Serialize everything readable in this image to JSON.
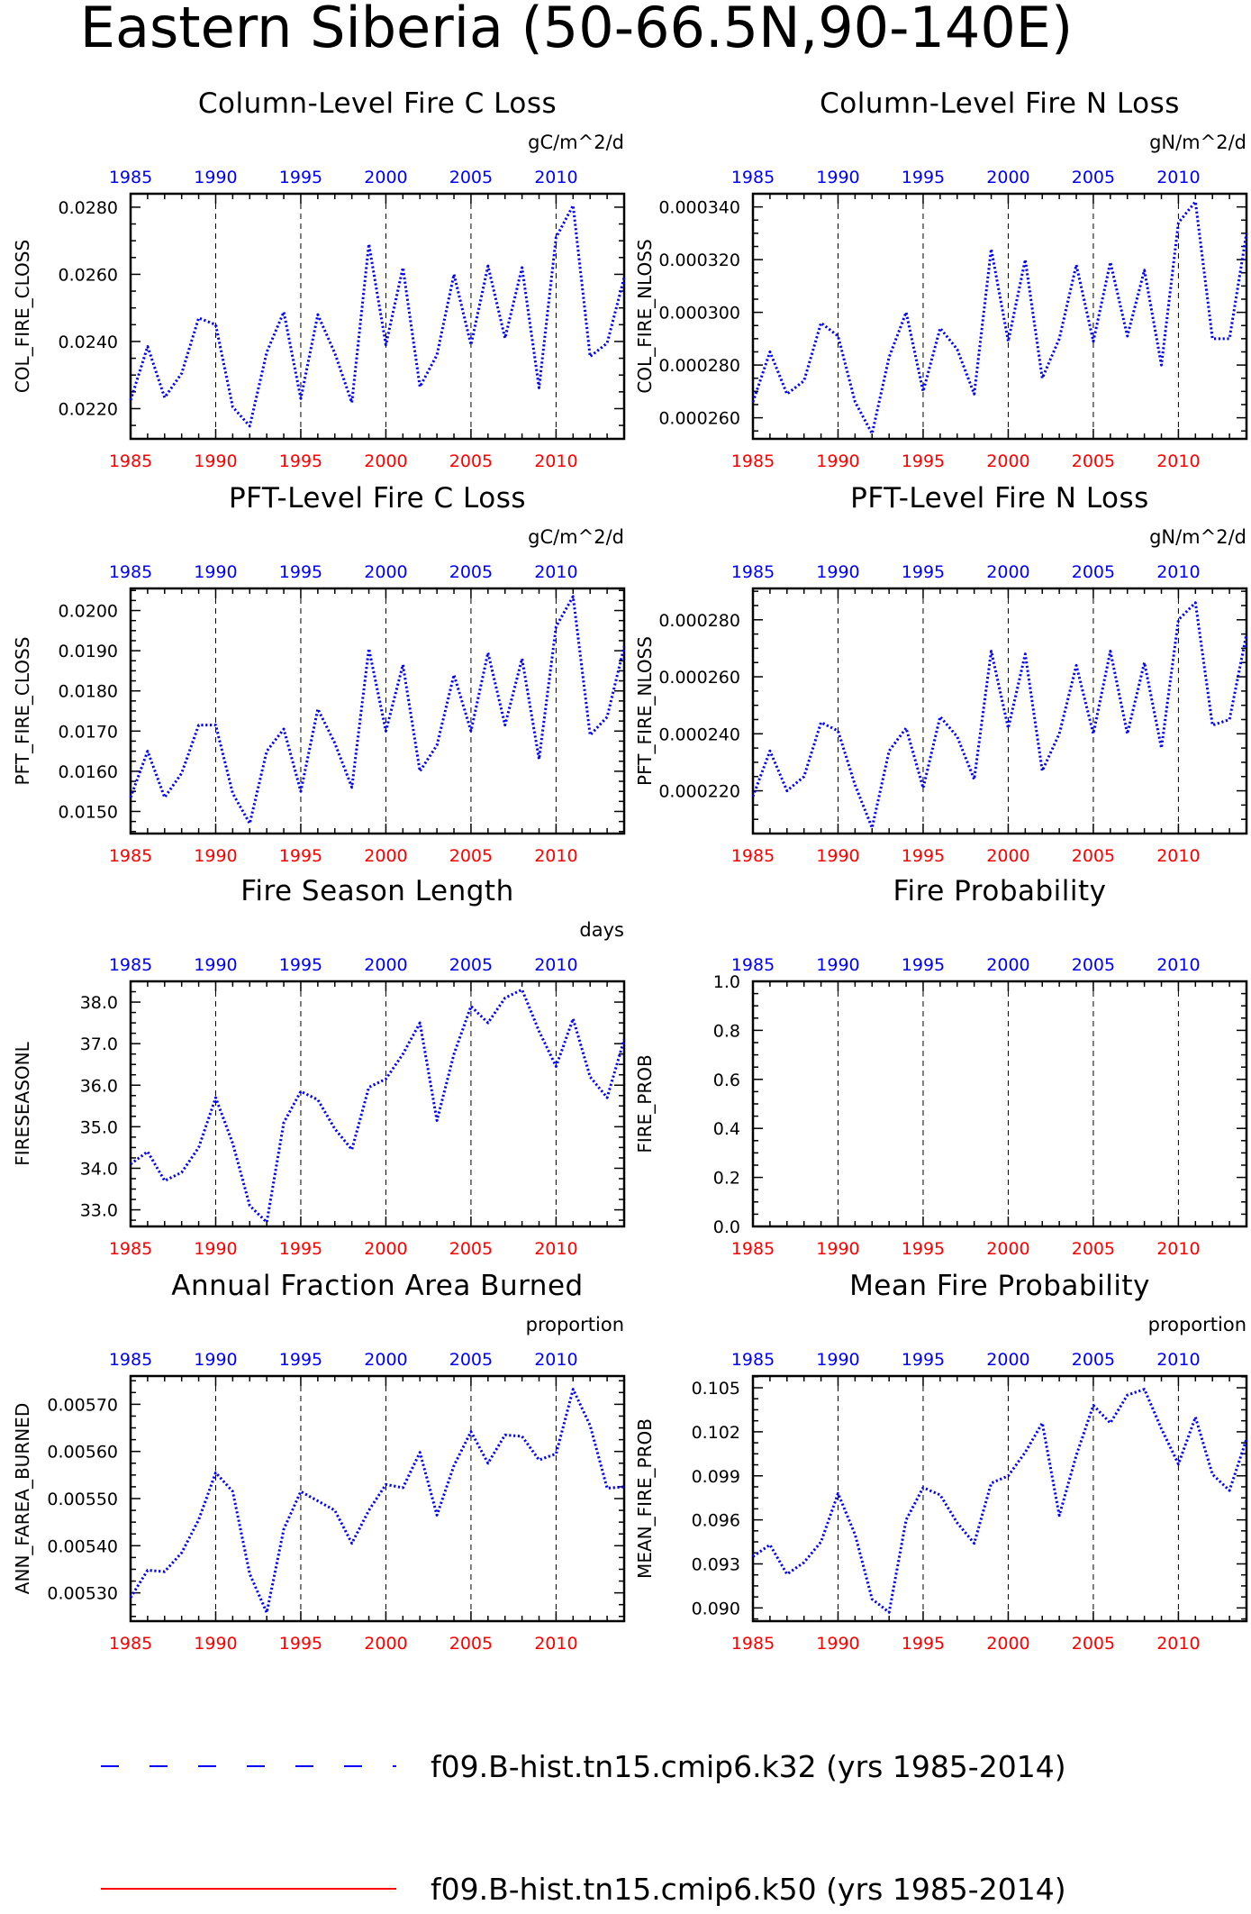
{
  "figure_title": "Eastern Siberia (50-66.5N,90-140E)",
  "colors": {
    "series": "#0000ff",
    "bottom_ticks": "#ff0000",
    "top_ticks": "#0000ff",
    "axes": "#000000"
  },
  "legend": [
    {
      "label": "f09.B-hist.tn15.cmip6.k32 (yrs 1985-2014)",
      "color": "#0000ff",
      "style": "dashed"
    },
    {
      "label": "f09.B-hist.tn15.cmip6.k50 (yrs 1985-2014)",
      "color": "#ff0000",
      "style": "solid"
    }
  ],
  "chart_data": [
    {
      "type": "line",
      "title": "Column-Level Fire C Loss",
      "units": "gC/m^2/d",
      "ylabel": "COL_FIRE_CLOSS",
      "xlim": [
        1985,
        2014
      ],
      "x_ticks": [
        1985,
        1990,
        1995,
        2000,
        2005,
        2010
      ],
      "ylim": [
        0.0211,
        0.0284
      ],
      "y_ticks": [
        "0.0220",
        "0.0240",
        "0.0260",
        "0.0280"
      ],
      "y_tick_values": [
        0.022,
        0.024,
        0.026,
        0.028
      ],
      "grid": "vertical dashed at x ticks",
      "x": [
        1985,
        1986,
        1987,
        1988,
        1989,
        1990,
        1991,
        1992,
        1993,
        1994,
        1995,
        1996,
        1997,
        1998,
        1999,
        2000,
        2001,
        2002,
        2003,
        2004,
        2005,
        2006,
        2007,
        2008,
        2009,
        2010,
        2011,
        2012,
        2013,
        2014
      ],
      "series": [
        {
          "name": "f09.B-hist.tn15.cmip6.k32",
          "values": [
            0.02225,
            0.02385,
            0.02233,
            0.02305,
            0.0247,
            0.0245,
            0.02205,
            0.02148,
            0.02368,
            0.02488,
            0.0223,
            0.0248,
            0.02365,
            0.02218,
            0.0269,
            0.0239,
            0.0262,
            0.02265,
            0.0236,
            0.026,
            0.0239,
            0.02625,
            0.0241,
            0.0262,
            0.02262,
            0.0271,
            0.02805,
            0.02355,
            0.02395,
            0.0259
          ]
        }
      ]
    },
    {
      "type": "line",
      "title": "Column-Level Fire N Loss",
      "units": "gN/m^2/d",
      "ylabel": "COL_FIRE_NLOSS",
      "xlim": [
        1985,
        2014
      ],
      "x_ticks": [
        1985,
        1990,
        1995,
        2000,
        2005,
        2010
      ],
      "ylim": [
        0.000252,
        0.000345
      ],
      "y_ticks": [
        "0.000260",
        "0.000280",
        "0.000300",
        "0.000320",
        "0.000340"
      ],
      "y_tick_values": [
        0.00026,
        0.00028,
        0.0003,
        0.00032,
        0.00034
      ],
      "grid": "vertical dashed at x ticks",
      "x": [
        1985,
        1986,
        1987,
        1988,
        1989,
        1990,
        1991,
        1992,
        1993,
        1994,
        1995,
        1996,
        1997,
        1998,
        1999,
        2000,
        2001,
        2002,
        2003,
        2004,
        2005,
        2006,
        2007,
        2008,
        2009,
        2010,
        2011,
        2012,
        2013,
        2014
      ],
      "series": [
        {
          "name": "f09.B-hist.tn15.cmip6.k32",
          "values": [
            0.000266,
            0.000285,
            0.000269,
            0.000274,
            0.000296,
            0.000291,
            0.000266,
            0.000254,
            0.000283,
            0.0003,
            0.00027,
            0.000294,
            0.000286,
            0.000269,
            0.000324,
            0.000289,
            0.00032,
            0.000275,
            0.00029,
            0.000318,
            0.000289,
            0.000319,
            0.000291,
            0.000316,
            0.00028,
            0.000334,
            0.000342,
            0.00029,
            0.00029,
            0.00033
          ]
        }
      ]
    },
    {
      "type": "line",
      "title": "PFT-Level Fire C Loss",
      "units": "gC/m^2/d",
      "ylabel": "PFT_FIRE_CLOSS",
      "xlim": [
        1985,
        2014
      ],
      "x_ticks": [
        1985,
        1990,
        1995,
        2000,
        2005,
        2010
      ],
      "ylim": [
        0.01445,
        0.02055
      ],
      "y_ticks": [
        "0.0150",
        "0.0160",
        "0.0170",
        "0.0180",
        "0.0190",
        "0.0200"
      ],
      "y_tick_values": [
        0.015,
        0.016,
        0.017,
        0.018,
        0.019,
        0.02
      ],
      "grid": "vertical dashed at x ticks",
      "x": [
        1985,
        1986,
        1987,
        1988,
        1989,
        1990,
        1991,
        1992,
        1993,
        1994,
        1995,
        1996,
        1997,
        1998,
        1999,
        2000,
        2001,
        2002,
        2003,
        2004,
        2005,
        2006,
        2007,
        2008,
        2009,
        2010,
        2011,
        2012,
        2013,
        2014
      ],
      "series": [
        {
          "name": "f09.B-hist.tn15.cmip6.k32",
          "values": [
            0.01535,
            0.0165,
            0.01535,
            0.01595,
            0.01715,
            0.01715,
            0.01545,
            0.0147,
            0.0165,
            0.01705,
            0.0155,
            0.01755,
            0.0167,
            0.0156,
            0.01905,
            0.017,
            0.01865,
            0.016,
            0.01665,
            0.0184,
            0.017,
            0.01895,
            0.01715,
            0.0188,
            0.0163,
            0.0196,
            0.02035,
            0.0169,
            0.01735,
            0.0191
          ]
        }
      ]
    },
    {
      "type": "line",
      "title": "PFT-Level Fire N Loss",
      "units": "gN/m^2/d",
      "ylabel": "PFT_FIRE_NLOSS",
      "xlim": [
        1985,
        2014
      ],
      "x_ticks": [
        1985,
        1990,
        1995,
        2000,
        2005,
        2010
      ],
      "ylim": [
        0.000205,
        0.000291
      ],
      "y_ticks": [
        "0.000220",
        "0.000240",
        "0.000260",
        "0.000280"
      ],
      "y_tick_values": [
        0.00022,
        0.00024,
        0.00026,
        0.00028
      ],
      "grid": "vertical dashed at x ticks",
      "x": [
        1985,
        1986,
        1987,
        1988,
        1989,
        1990,
        1991,
        1992,
        1993,
        1994,
        1995,
        1996,
        1997,
        1998,
        1999,
        2000,
        2001,
        2002,
        2003,
        2004,
        2005,
        2006,
        2007,
        2008,
        2009,
        2010,
        2011,
        2012,
        2013,
        2014
      ],
      "series": [
        {
          "name": "f09.B-hist.tn15.cmip6.k32",
          "values": [
            0.000218,
            0.000234,
            0.00022,
            0.000225,
            0.000244,
            0.000241,
            0.000222,
            0.000207,
            0.000234,
            0.000242,
            0.000221,
            0.000246,
            0.000239,
            0.000224,
            0.000269,
            0.000242,
            0.000268,
            0.000227,
            0.00024,
            0.000264,
            0.00024,
            0.000269,
            0.00024,
            0.000265,
            0.000235,
            0.00028,
            0.000286,
            0.000243,
            0.000245,
            0.000275
          ]
        }
      ]
    },
    {
      "type": "line",
      "title": "Fire Season Length",
      "units": "days",
      "ylabel": "FIRESEASONL",
      "xlim": [
        1985,
        2014
      ],
      "x_ticks": [
        1985,
        1990,
        1995,
        2000,
        2005,
        2010
      ],
      "ylim": [
        32.6,
        38.5
      ],
      "y_ticks": [
        "33.0",
        "34.0",
        "35.0",
        "36.0",
        "37.0",
        "38.0"
      ],
      "y_tick_values": [
        33,
        34,
        35,
        36,
        37,
        38
      ],
      "grid": "vertical dashed at x ticks",
      "x": [
        1985,
        1986,
        1987,
        1988,
        1989,
        1990,
        1991,
        1992,
        1993,
        1994,
        1995,
        1996,
        1997,
        1998,
        1999,
        2000,
        2001,
        2002,
        2003,
        2004,
        2005,
        2006,
        2007,
        2008,
        2009,
        2010,
        2011,
        2012,
        2013,
        2014
      ],
      "series": [
        {
          "name": "f09.B-hist.tn15.cmip6.k32",
          "values": [
            34.1,
            34.4,
            33.7,
            33.9,
            34.5,
            35.7,
            34.6,
            33.1,
            32.7,
            35.1,
            35.85,
            35.65,
            34.95,
            34.45,
            35.95,
            36.15,
            36.75,
            37.5,
            35.15,
            36.75,
            37.9,
            37.5,
            38.1,
            38.3,
            37.3,
            36.45,
            37.6,
            36.2,
            35.7,
            37.1
          ]
        }
      ]
    },
    {
      "type": "line",
      "title": "Fire Probability",
      "units": "",
      "ylabel": "FIRE_PROB",
      "xlim": [
        1985,
        2014
      ],
      "x_ticks": [
        1985,
        1990,
        1995,
        2000,
        2005,
        2010
      ],
      "ylim": [
        0.0,
        1.0
      ],
      "y_ticks": [
        "0.0",
        "0.2",
        "0.4",
        "0.6",
        "0.8",
        "1.0"
      ],
      "y_tick_values": [
        0,
        0.2,
        0.4,
        0.6,
        0.8,
        1
      ],
      "grid": "vertical dashed at x ticks",
      "x": [],
      "series": []
    },
    {
      "type": "line",
      "title": "Annual Fraction Area Burned",
      "units": "proportion",
      "ylabel": "ANN_FAREA_BURNED",
      "xlim": [
        1985,
        2014
      ],
      "x_ticks": [
        1985,
        1990,
        1995,
        2000,
        2005,
        2010
      ],
      "ylim": [
        0.00524,
        0.00576
      ],
      "y_ticks": [
        "0.00530",
        "0.00540",
        "0.00550",
        "0.00560",
        "0.00570"
      ],
      "y_tick_values": [
        0.0053,
        0.0054,
        0.0055,
        0.0056,
        0.0057
      ],
      "grid": "vertical dashed at x ticks",
      "x": [
        1985,
        1986,
        1987,
        1988,
        1989,
        1990,
        1991,
        1992,
        1993,
        1994,
        1995,
        1996,
        1997,
        1998,
        1999,
        2000,
        2001,
        2002,
        2003,
        2004,
        2005,
        2006,
        2007,
        2008,
        2009,
        2010,
        2011,
        2012,
        2013,
        2014
      ],
      "series": [
        {
          "name": "f09.B-hist.tn15.cmip6.k32",
          "values": [
            0.00529,
            0.005348,
            0.005345,
            0.005385,
            0.005455,
            0.005555,
            0.005515,
            0.00534,
            0.005258,
            0.005435,
            0.005515,
            0.005495,
            0.005475,
            0.005405,
            0.005475,
            0.00553,
            0.005523,
            0.005598,
            0.005465,
            0.00557,
            0.005642,
            0.005575,
            0.005635,
            0.005632,
            0.005582,
            0.005595,
            0.005732,
            0.005655,
            0.005522,
            0.005525
          ]
        }
      ]
    },
    {
      "type": "line",
      "title": "Mean Fire Probability",
      "units": "proportion",
      "ylabel": "MEAN_FIRE_PROB",
      "xlim": [
        1985,
        2014
      ],
      "x_ticks": [
        1985,
        1990,
        1995,
        2000,
        2005,
        2010
      ],
      "ylim": [
        0.0891,
        0.1058
      ],
      "y_ticks": [
        "0.090",
        "0.093",
        "0.096",
        "0.099",
        "0.102",
        "0.105"
      ],
      "y_tick_values": [
        0.09,
        0.093,
        0.096,
        0.099,
        0.102,
        0.105
      ],
      "grid": "vertical dashed at x ticks",
      "x": [
        1985,
        1986,
        1987,
        1988,
        1989,
        1990,
        1991,
        1992,
        1993,
        1994,
        1995,
        1996,
        1997,
        1998,
        1999,
        2000,
        2001,
        2002,
        2003,
        2004,
        2005,
        2006,
        2007,
        2008,
        2009,
        2010,
        2011,
        2012,
        2013,
        2014
      ],
      "series": [
        {
          "name": "f09.B-hist.tn15.cmip6.k32",
          "values": [
            0.0935,
            0.0943,
            0.0923,
            0.0931,
            0.0945,
            0.0978,
            0.095,
            0.0906,
            0.0897,
            0.096,
            0.0982,
            0.0977,
            0.0958,
            0.0944,
            0.0985,
            0.099,
            0.1006,
            0.1026,
            0.0963,
            0.1004,
            0.1038,
            0.1026,
            0.1045,
            0.1049,
            0.1022,
            0.0998,
            0.103,
            0.0991,
            0.098,
            0.1015
          ]
        }
      ]
    }
  ]
}
